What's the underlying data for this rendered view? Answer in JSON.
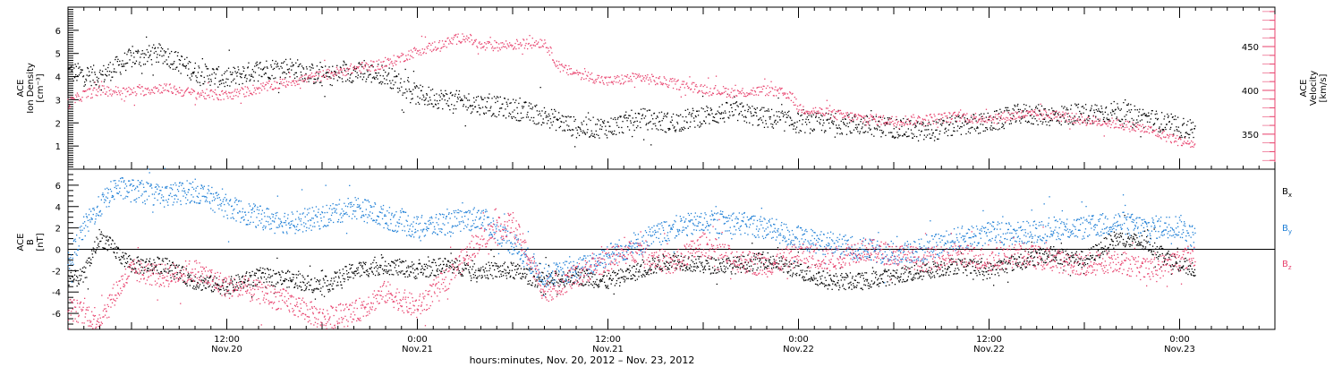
{
  "colors": {
    "density": "#000000",
    "velocity": "#e8436e",
    "bx": "#000000",
    "by": "#1f7fd6",
    "bz": "#e8436e"
  },
  "xaxis": {
    "title": "hours:minutes, Nov. 20, 2012 – Nov. 23, 2012",
    "tick_labels": [
      {
        "time": "12:00",
        "date": "Nov.20",
        "hour": 12
      },
      {
        "time": "0:00",
        "date": "Nov.21",
        "hour": 24
      },
      {
        "time": "12:00",
        "date": "Nov.21",
        "hour": 36
      },
      {
        "time": "0:00",
        "date": "Nov.22",
        "hour": 48
      },
      {
        "time": "12:00",
        "date": "Nov.22",
        "hour": 60
      },
      {
        "time": "0:00",
        "date": "Nov.23",
        "hour": 72
      }
    ]
  },
  "chart_data": [
    {
      "type": "scatter",
      "panel": "top",
      "ylabel_left": [
        "ACE",
        "Ion Density",
        "[cm⁻³]"
      ],
      "ylabel_right": [
        "ACE",
        "Velocity",
        "[km/s]"
      ],
      "xlim": [
        2,
        78
      ],
      "ylim_left": [
        0,
        7
      ],
      "ylim_right": [
        310,
        495
      ],
      "yticks_left": [
        1,
        2,
        3,
        4,
        5,
        6
      ],
      "yticks_right": [
        350,
        400,
        450
      ],
      "series": [
        {
          "name": "Ion Density",
          "axis": "left",
          "color_key": "density",
          "x": [
            2,
            4,
            6,
            8,
            10,
            12,
            14,
            16,
            18,
            20,
            22,
            24,
            26,
            28,
            30,
            32,
            34,
            36,
            38,
            40,
            42,
            44,
            46,
            48,
            50,
            52,
            54,
            56,
            58,
            60,
            62,
            64,
            66,
            68,
            70,
            72,
            73
          ],
          "values": [
            4.2,
            4.0,
            4.8,
            5.0,
            4.2,
            3.9,
            4.3,
            4.4,
            4.0,
            4.2,
            4.1,
            3.2,
            3.0,
            2.8,
            2.6,
            2.3,
            1.8,
            1.8,
            2.2,
            2.0,
            2.3,
            2.5,
            2.2,
            2.0,
            2.0,
            1.9,
            1.8,
            1.6,
            1.9,
            2.0,
            2.4,
            2.3,
            2.4,
            2.5,
            2.2,
            1.8,
            1.7
          ]
        },
        {
          "name": "Velocity",
          "axis": "right",
          "color_key": "velocity",
          "x": [
            2,
            3,
            4,
            6,
            8,
            10,
            12,
            14,
            16,
            18,
            20,
            22,
            24,
            26,
            27,
            28,
            30,
            32,
            33,
            34,
            36,
            38,
            40,
            42,
            44,
            46,
            47.5,
            48,
            50,
            52,
            54,
            56,
            58,
            60,
            62,
            64,
            66,
            68,
            70,
            72,
            73
          ],
          "values": [
            385,
            395,
            400,
            398,
            403,
            396,
            394,
            402,
            410,
            417,
            425,
            430,
            445,
            455,
            462,
            450,
            452,
            455,
            425,
            420,
            410,
            415,
            408,
            402,
            397,
            400,
            395,
            380,
            373,
            368,
            365,
            367,
            370,
            368,
            372,
            372,
            366,
            362,
            355,
            342,
            338
          ]
        }
      ]
    },
    {
      "type": "scatter",
      "panel": "bottom",
      "ylabel_left": [
        "ACE",
        "B",
        "[nT]"
      ],
      "xlim": [
        2,
        78
      ],
      "ylim": [
        -7.5,
        7.5
      ],
      "yticks": [
        -6,
        -4,
        -2,
        0,
        2,
        4,
        6
      ],
      "zero_line": true,
      "legend_position": "right",
      "series": [
        {
          "name": "B",
          "subscript": "x",
          "color_key": "bx",
          "x": [
            2,
            3,
            4,
            6,
            8,
            10,
            12,
            14,
            16,
            18,
            20,
            22,
            24,
            26,
            28,
            30,
            32,
            34,
            36,
            38,
            40,
            42,
            44,
            46,
            48,
            50,
            52,
            54,
            56,
            58,
            60,
            62,
            64,
            66,
            68,
            70,
            72,
            73
          ],
          "values": [
            -3,
            -2.5,
            1.2,
            -1.5,
            -1.5,
            -3.0,
            -3.5,
            -2.5,
            -2.8,
            -3.5,
            -2.0,
            -1.5,
            -2.0,
            -1.5,
            -2.0,
            -2.0,
            -3.0,
            -2.5,
            -3.0,
            -2.0,
            -1.0,
            -1.5,
            -1.5,
            -1.0,
            -2.0,
            -3.0,
            -3.0,
            -2.5,
            -2.0,
            -1.5,
            -2.0,
            -1.0,
            -0.5,
            -1.0,
            1.0,
            0.5,
            -1.5,
            -1.8
          ]
        },
        {
          "name": "B",
          "subscript": "y",
          "color_key": "by",
          "x": [
            2,
            3,
            4,
            5,
            6,
            8,
            10,
            12,
            14,
            16,
            18,
            20,
            22,
            24,
            26,
            28,
            30,
            32,
            34,
            36,
            38,
            40,
            42,
            44,
            46,
            48,
            50,
            52,
            54,
            56,
            58,
            60,
            62,
            64,
            66,
            68,
            70,
            72,
            73
          ],
          "values": [
            -1.5,
            2.0,
            4.0,
            5.8,
            5.5,
            5.0,
            5.5,
            4.0,
            3.0,
            2.5,
            3.0,
            4.0,
            3.0,
            2.0,
            2.5,
            3.0,
            0.5,
            -2.5,
            -2.0,
            -0.5,
            0.5,
            2.0,
            2.5,
            2.5,
            2.0,
            1.0,
            0.5,
            0.0,
            -0.5,
            0.0,
            1.0,
            1.5,
            1.5,
            2.0,
            2.0,
            2.5,
            2.0,
            2.2,
            1.0
          ]
        },
        {
          "name": "B",
          "subscript": "z",
          "color_key": "bz",
          "x": [
            2,
            3,
            4,
            5,
            6,
            8,
            10,
            12,
            14,
            16,
            18,
            20,
            22,
            24,
            26,
            28,
            30,
            32,
            34,
            36,
            38,
            40,
            42,
            44,
            46,
            48,
            50,
            52,
            54,
            56,
            58,
            60,
            62,
            64,
            66,
            68,
            70,
            72,
            73
          ],
          "values": [
            -5.5,
            -6.0,
            -6.5,
            -4.0,
            -2.0,
            -2.5,
            -2.0,
            -3.5,
            -4.0,
            -5.0,
            -6.5,
            -6.0,
            -4.0,
            -5.5,
            -2.5,
            1.0,
            2.5,
            -4.0,
            -2.5,
            -1.0,
            0.0,
            -1.5,
            0.5,
            -1.0,
            -1.5,
            -0.5,
            -1.0,
            0.0,
            -0.5,
            -1.0,
            -0.5,
            -1.0,
            -0.5,
            -1.0,
            -1.5,
            -1.0,
            -2.0,
            -1.0,
            -0.5
          ]
        }
      ]
    }
  ]
}
